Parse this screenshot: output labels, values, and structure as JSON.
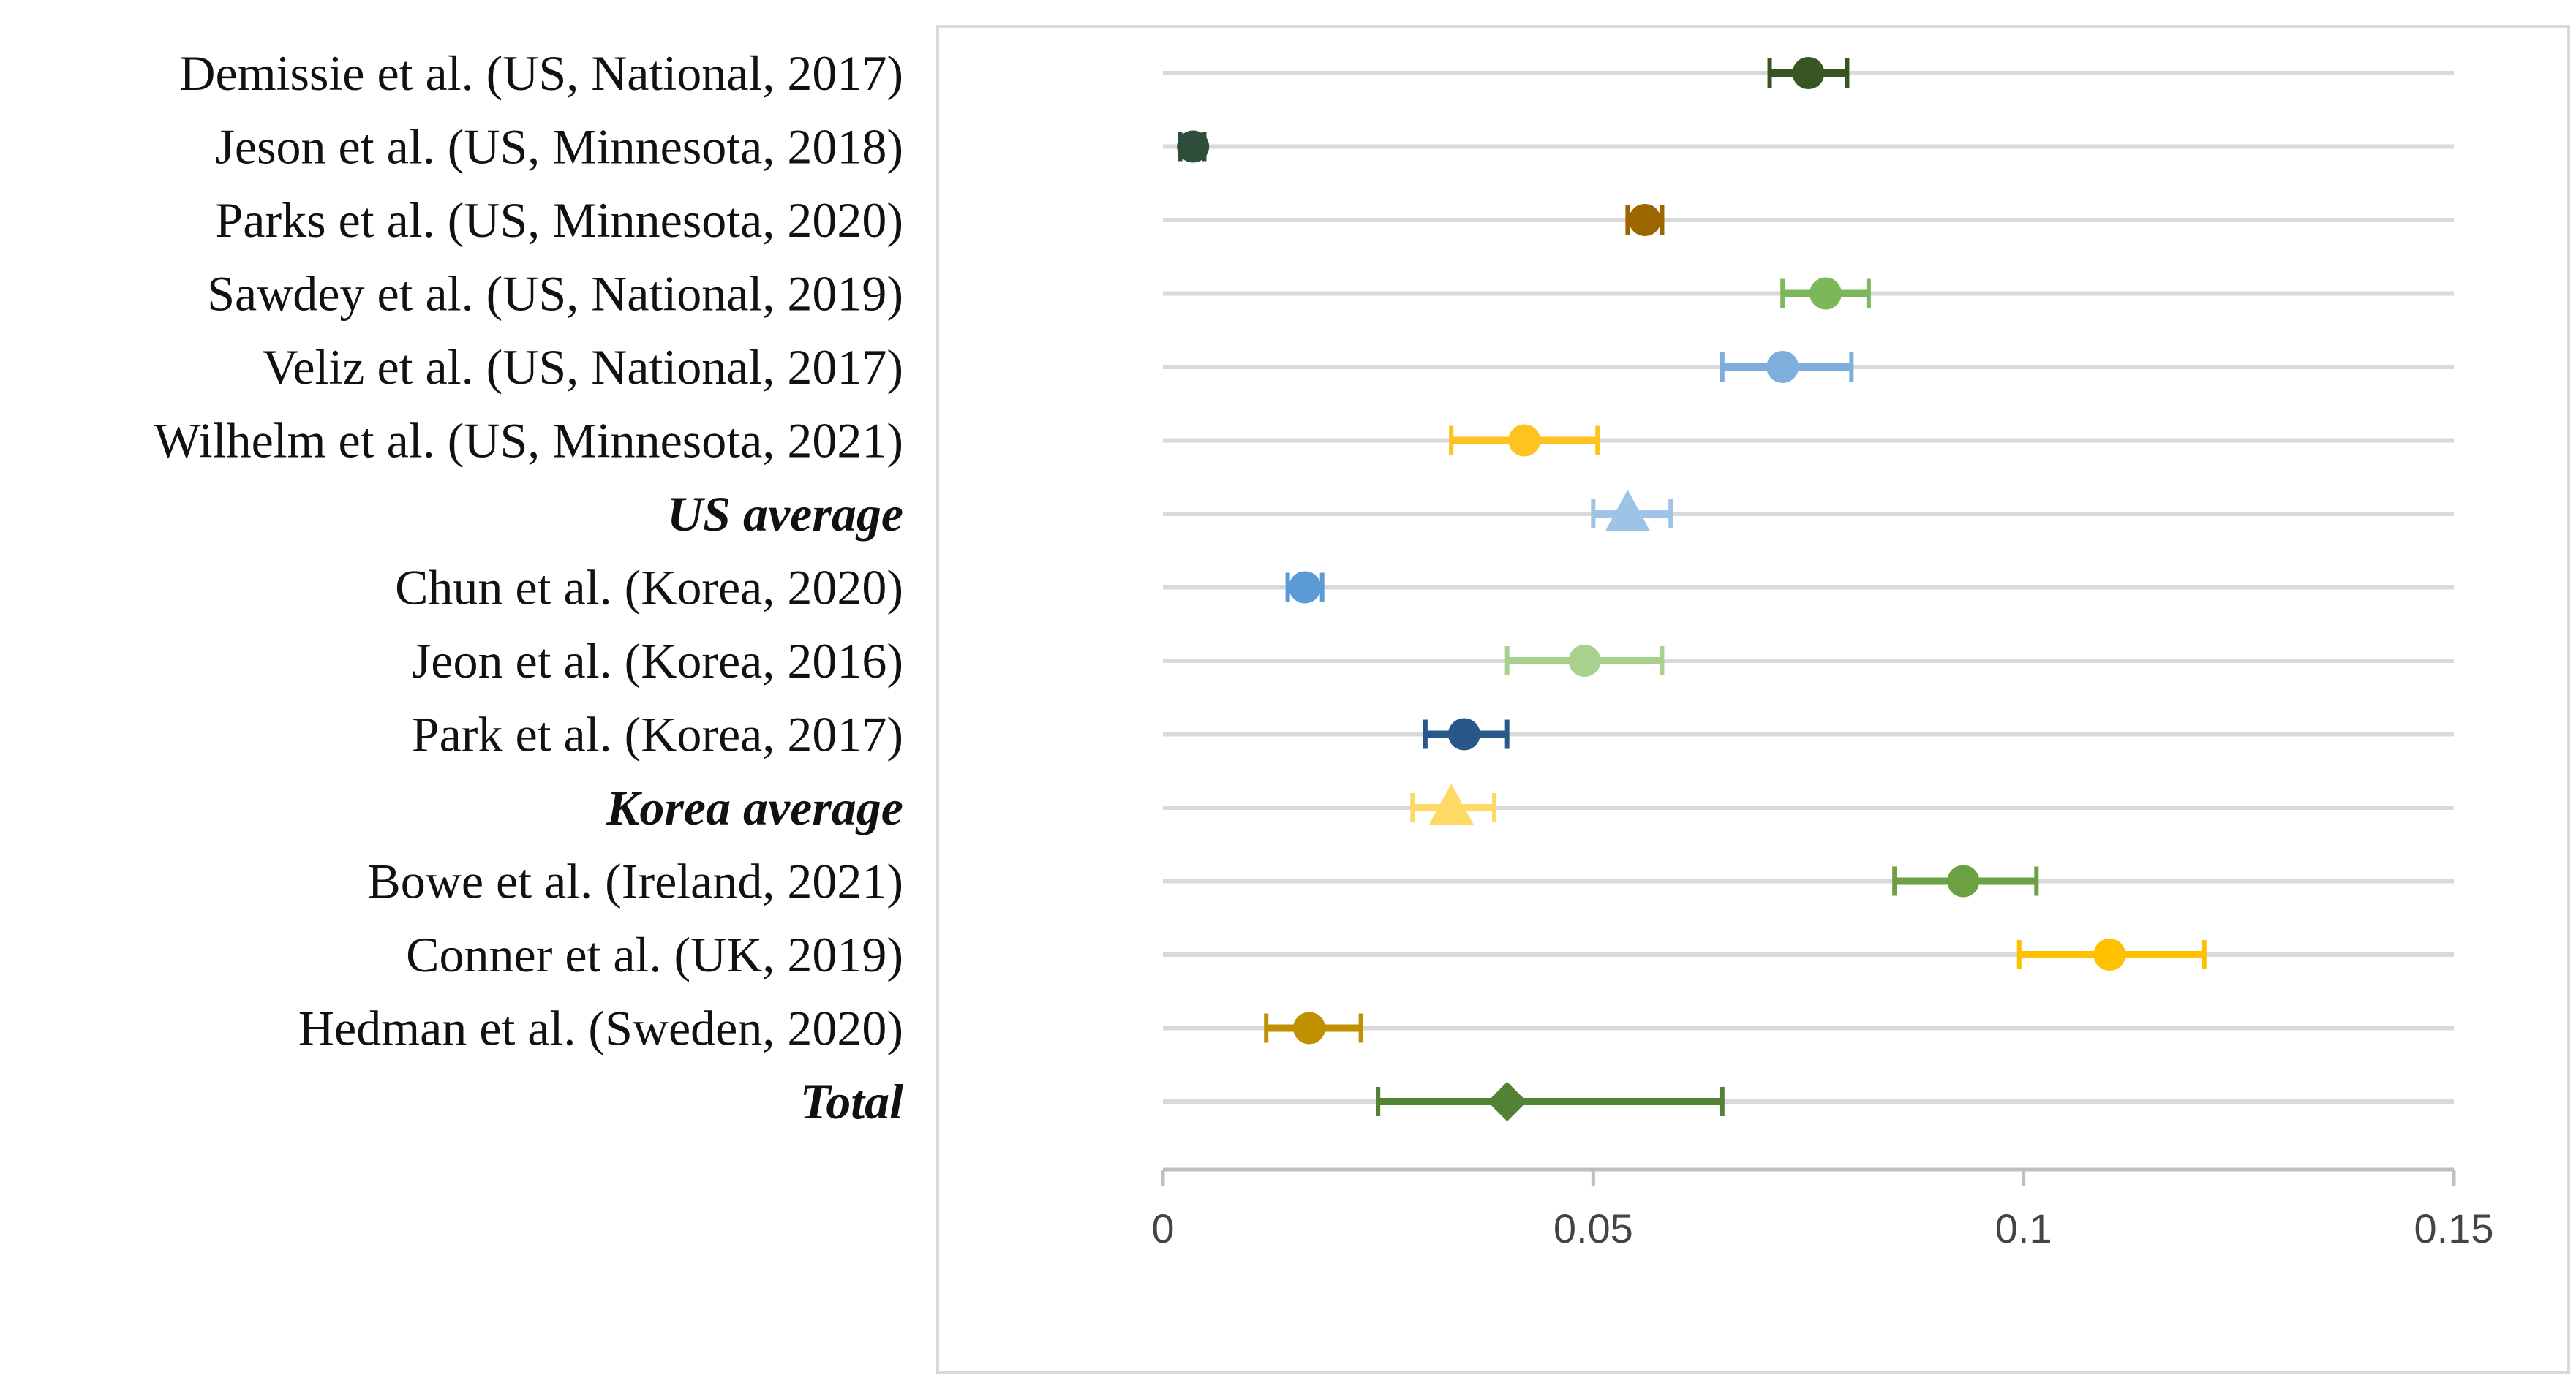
{
  "chart_data": {
    "type": "forest",
    "title": "",
    "xlabel": "",
    "ylabel": "",
    "xlim": [
      0,
      0.15
    ],
    "xticks": [
      {
        "value": 0,
        "label": "0"
      },
      {
        "value": 0.05,
        "label": "0.05"
      },
      {
        "value": 0.1,
        "label": "0.1"
      },
      {
        "value": 0.15,
        "label": "0.15"
      }
    ],
    "grid": true,
    "rows": [
      {
        "label": "Demissie et al. (US, National, 2017)",
        "estimate": 0.075,
        "lower": 0.0705,
        "upper": 0.0795,
        "marker": "circle",
        "color": "#375623",
        "emphasis": false
      },
      {
        "label": "Jeson et al. (US, Minnesota, 2018)",
        "estimate": 0.0035,
        "lower": 0.002,
        "upper": 0.0048,
        "marker": "circle",
        "color": "#2E4E3B",
        "emphasis": false
      },
      {
        "label": "Parks et al. (US, Minnesota, 2020)",
        "estimate": 0.056,
        "lower": 0.054,
        "upper": 0.058,
        "marker": "circle",
        "color": "#9C6500",
        "emphasis": false
      },
      {
        "label": "Sawdey et al. (US, National, 2019)",
        "estimate": 0.077,
        "lower": 0.072,
        "upper": 0.082,
        "marker": "circle",
        "color": "#7CB85A",
        "emphasis": false
      },
      {
        "label": "Veliz et al. (US, National, 2017)",
        "estimate": 0.072,
        "lower": 0.065,
        "upper": 0.08,
        "marker": "circle",
        "color": "#7FAEDD",
        "emphasis": false
      },
      {
        "label": "Wilhelm et al. (US, Minnesota, 2021)",
        "estimate": 0.042,
        "lower": 0.0335,
        "upper": 0.0505,
        "marker": "circle",
        "color": "#FFC31F",
        "emphasis": false
      },
      {
        "label": "US average",
        "estimate": 0.054,
        "lower": 0.05,
        "upper": 0.059,
        "marker": "triangle",
        "color": "#9DC3E6",
        "emphasis": true
      },
      {
        "label": "Chun et al. (Korea, 2020)",
        "estimate": 0.0165,
        "lower": 0.0145,
        "upper": 0.0185,
        "marker": "circle",
        "color": "#5B9BD5",
        "emphasis": false
      },
      {
        "label": "Jeon et al. (Korea, 2016)",
        "estimate": 0.049,
        "lower": 0.04,
        "upper": 0.058,
        "marker": "circle",
        "color": "#A9D18E",
        "emphasis": false
      },
      {
        "label": "Park et al. (Korea, 2017)",
        "estimate": 0.035,
        "lower": 0.0305,
        "upper": 0.04,
        "marker": "circle",
        "color": "#285889",
        "emphasis": false
      },
      {
        "label": "Korea average",
        "estimate": 0.0335,
        "lower": 0.029,
        "upper": 0.0385,
        "marker": "triangle",
        "color": "#FFD966",
        "emphasis": true
      },
      {
        "label": "Bowe et al. (Ireland, 2021)",
        "estimate": 0.093,
        "lower": 0.085,
        "upper": 0.1015,
        "marker": "circle",
        "color": "#6BA043",
        "emphasis": false
      },
      {
        "label": "Conner et al. (UK, 2019)",
        "estimate": 0.11,
        "lower": 0.0995,
        "upper": 0.121,
        "marker": "circle",
        "color": "#FFC000",
        "emphasis": false
      },
      {
        "label": "Hedman et al. (Sweden, 2020)",
        "estimate": 0.017,
        "lower": 0.012,
        "upper": 0.023,
        "marker": "circle",
        "color": "#C09000",
        "emphasis": false
      },
      {
        "label": "Total",
        "estimate": 0.04,
        "lower": 0.025,
        "upper": 0.065,
        "marker": "diamond",
        "color": "#548235",
        "emphasis": true
      }
    ],
    "colors": {
      "gridline": "#D9D9D9",
      "axis": "#BFBFBF",
      "frame": "#D9D9D9"
    }
  }
}
